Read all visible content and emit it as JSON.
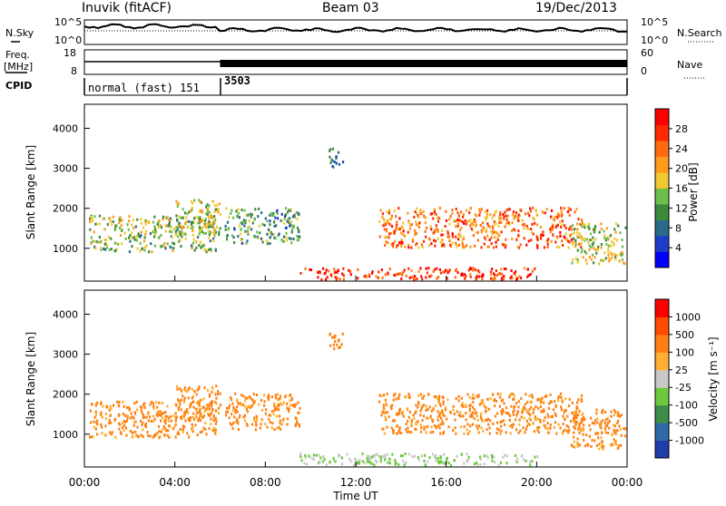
{
  "header": {
    "station": "Inuvik (fitACF)",
    "beam": "Beam 03",
    "date": "19/Dec/2013"
  },
  "strips": {
    "nsky_label": "N.Sky",
    "nsky_ticks": [
      "10^5",
      "10^0"
    ],
    "nsearch_label": "N.Search",
    "nsearch_ticks": [
      "10^5",
      "10^0"
    ],
    "freq_label": "Freq.",
    "freq_unit": "[MHz]",
    "freq_ticks": [
      "18",
      "8"
    ],
    "nave_label": "Nave",
    "nave_ticks": [
      "60",
      "0"
    ],
    "cpid_label": "CPID",
    "cpid_segments": [
      {
        "start_hr": 0.0,
        "end_hr": 6.0,
        "name": "normal (fast) 151"
      },
      {
        "start_hr": 6.0,
        "end_hr": 24.0,
        "name": "3503"
      }
    ]
  },
  "time_axis": {
    "title": "Time UT",
    "ticks": [
      "00:00",
      "04:00",
      "08:00",
      "12:00",
      "16:00",
      "20:00",
      "00:00"
    ]
  },
  "chart_data": [
    {
      "type": "heatmap",
      "parameter": "power",
      "ylabel": "Slant Range [km]",
      "x_range_hours": [
        0,
        24
      ],
      "ylim": [
        180,
        4600
      ],
      "yticks": [
        "4000",
        "3000",
        "2000",
        "1000"
      ],
      "colorbar": {
        "label": "Power [dB]",
        "ticks": [
          "28",
          "24",
          "20",
          "16",
          "12",
          "8",
          "4"
        ],
        "colors": [
          "#0000ff",
          "#1e3cc8",
          "#2a6a8c",
          "#3c8a3c",
          "#6cbf4a",
          "#f0c830",
          "#ff9a1a",
          "#ff6a10",
          "#ff2a00",
          "#ff0000"
        ]
      }
    },
    {
      "type": "heatmap",
      "parameter": "velocity",
      "ylabel": "Slant Range [km]",
      "x_range_hours": [
        0,
        24
      ],
      "ylim": [
        180,
        4600
      ],
      "yticks": [
        "4000",
        "3000",
        "2000",
        "1000"
      ],
      "colorbar": {
        "label": "Velocity [m s⁻¹]",
        "ticks": [
          "1000",
          "500",
          "100",
          "25",
          "-25",
          "-100",
          "-500",
          "-1000"
        ],
        "colors": [
          "#1f3ca8",
          "#2f6aa8",
          "#3c8c4a",
          "#6cc83c",
          "#c8c8c8",
          "#ffb030",
          "#ff8010",
          "#ff4a00",
          "#ff0000"
        ]
      }
    }
  ]
}
